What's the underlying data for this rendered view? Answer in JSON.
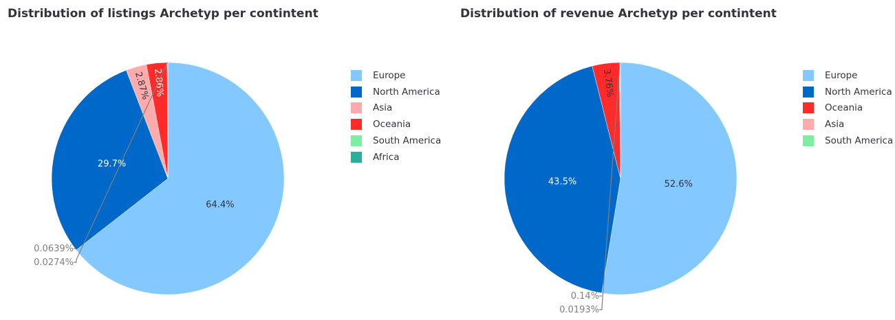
{
  "colors": {
    "Europe": "#83c9ff",
    "North America": "#0068c9",
    "Asia": "#ffabab",
    "Oceania": "#ff2b2b",
    "South America": "#7defa1",
    "Africa": "#29b09d"
  },
  "chart_data": [
    {
      "type": "pie",
      "title": "Distribution of listings Archetyp per contintent",
      "legend_position": "right",
      "slices": [
        {
          "label": "Europe",
          "value": 64.4,
          "display": "64.4%"
        },
        {
          "label": "North America",
          "value": 29.7,
          "display": "29.7%"
        },
        {
          "label": "Asia",
          "value": 2.87,
          "display": "2.87%"
        },
        {
          "label": "Oceania",
          "value": 2.86,
          "display": "2.86%"
        },
        {
          "label": "South America",
          "value": 0.0639,
          "display": "0.0639%"
        },
        {
          "label": "Africa",
          "value": 0.0274,
          "display": "0.0274%"
        }
      ]
    },
    {
      "type": "pie",
      "title": "Distribution of revenue Archetyp per contintent",
      "legend_position": "right",
      "slices": [
        {
          "label": "Europe",
          "value": 52.6,
          "display": "52.6%"
        },
        {
          "label": "North America",
          "value": 43.5,
          "display": "43.5%"
        },
        {
          "label": "Oceania",
          "value": 3.76,
          "display": "3.76%"
        },
        {
          "label": "Asia",
          "value": 0.14,
          "display": "0.14%"
        },
        {
          "label": "South America",
          "value": 0.0193,
          "display": "0.0193%"
        }
      ]
    }
  ]
}
